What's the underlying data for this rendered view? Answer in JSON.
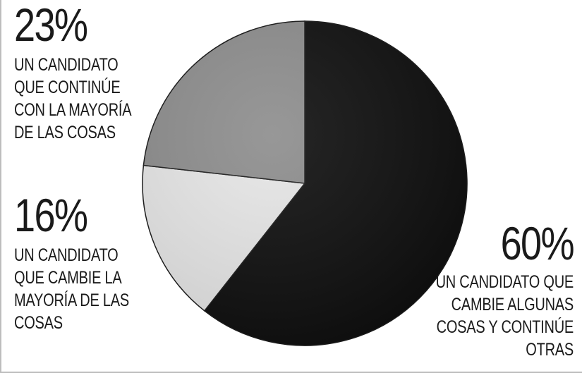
{
  "chart_data": {
    "type": "pie",
    "title": "",
    "slices": [
      {
        "value": 60,
        "percent_label": "60%",
        "label": "UN CANDIDATO QUE\nCAMBIE ALGUNAS\nCOSAS Y CONTINÚE\nOTRAS",
        "color": "#0d0d0d"
      },
      {
        "value": 16,
        "percent_label": "16%",
        "label": "UN CANDIDATO\nQUE CAMBIE LA\nMAYORÍA DE LAS\nCOSAS",
        "color": "#e6e6e6"
      },
      {
        "value": 23,
        "percent_label": "23%",
        "label": "UN CANDIDATO\nQUE CONTINÚE\nCON LA MAYORÍA\nDE LAS COSAS",
        "color": "#8c8c8c"
      }
    ],
    "start": "12 o'clock",
    "direction": "clockwise"
  }
}
